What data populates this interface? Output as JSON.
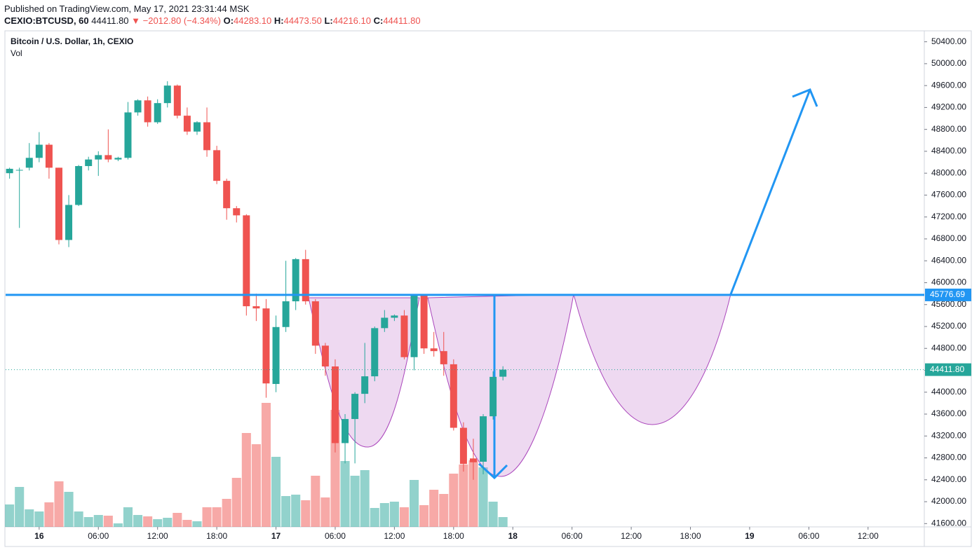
{
  "header": {
    "published": "Published on TradingView.com, May 17, 2021 23:31:44 MSK",
    "symbol": "CEXIO:BTCUSD, 60",
    "price": "44411.80",
    "change": "▼ −2012.80 (−4.34%)",
    "ohlc": [
      {
        "key": "O:",
        "value": "44283.10"
      },
      {
        "key": "H:",
        "value": "44473.50"
      },
      {
        "key": "L:",
        "value": "44216.10"
      },
      {
        "key": "C:",
        "value": "44411.80"
      }
    ]
  },
  "chart_data": {
    "type": "candlestick",
    "title": "Bitcoin / U.S. Dollar, 1h, CEXIO",
    "volume_label": "Vol",
    "x": [
      -3,
      -2,
      -1,
      0,
      1,
      2,
      3,
      4,
      5,
      6,
      7,
      8,
      9,
      10,
      11,
      12,
      13,
      14,
      15,
      16,
      17,
      18,
      19,
      20,
      21,
      22,
      23,
      24,
      25,
      26,
      27,
      28,
      29,
      30,
      31,
      32,
      33,
      34,
      35,
      36,
      37,
      38,
      39,
      40,
      41,
      42,
      43,
      44,
      45,
      46,
      47
    ],
    "open": [
      48000,
      48050,
      48100,
      48280,
      48520,
      48100,
      46780,
      47420,
      48130,
      48250,
      48330,
      48250,
      48280,
      49110,
      49330,
      48930,
      49280,
      49600,
      49050,
      48760,
      48930,
      48420,
      47860,
      47360,
      47230,
      45570,
      45530,
      44150,
      45190,
      45660,
      46430,
      45660,
      44850,
      44470,
      43070,
      43510,
      43970,
      44290,
      45170,
      45360,
      45400,
      44640,
      45780,
      44800,
      44750,
      44510,
      43350,
      42790,
      42730,
      43560,
      44283.1
    ],
    "high": [
      48100,
      48100,
      48550,
      48750,
      48550,
      48100,
      47600,
      48150,
      48300,
      48400,
      48800,
      48300,
      49300,
      49350,
      49400,
      49350,
      49680,
      49620,
      49200,
      48950,
      49200,
      48500,
      47900,
      47400,
      47250,
      45800,
      45700,
      45400,
      46400,
      46450,
      46600,
      45700,
      44900,
      44600,
      43600,
      44000,
      44900,
      45200,
      45500,
      45420,
      45500,
      45780,
      45780,
      45100,
      45100,
      44600,
      43450,
      43150,
      43600,
      44380,
      44473.5
    ],
    "low": [
      47900,
      47000,
      48050,
      48200,
      47900,
      46700,
      46650,
      47400,
      48050,
      47950,
      48200,
      48220,
      48250,
      49050,
      48850,
      48900,
      49200,
      49000,
      48700,
      48700,
      48300,
      47800,
      47150,
      47100,
      45400,
      45300,
      43900,
      44000,
      45100,
      45500,
      45600,
      44700,
      44300,
      42900,
      42700,
      42700,
      43800,
      44200,
      45100,
      45300,
      44600,
      44400,
      44700,
      44650,
      44300,
      43300,
      42550,
      42400,
      42500,
      43500,
      44216.1
    ],
    "close": [
      48080,
      48060,
      48280,
      48520,
      48100,
      46780,
      47420,
      48130,
      48250,
      48330,
      48250,
      48280,
      49110,
      49330,
      48930,
      49280,
      49600,
      49050,
      48760,
      48930,
      48420,
      47860,
      47360,
      47230,
      45570,
      45530,
      44160,
      45190,
      45660,
      46430,
      45660,
      44850,
      44470,
      43070,
      43510,
      43970,
      44290,
      45170,
      45360,
      45400,
      44640,
      45780,
      44800,
      44750,
      44510,
      43350,
      42690,
      42720,
      43560,
      44280,
      44411.8
    ],
    "volume": [
      32,
      57,
      25,
      22,
      35,
      65,
      50,
      22,
      14,
      17,
      16,
      5,
      28,
      17,
      15,
      11,
      13,
      20,
      10,
      8,
      28,
      28,
      40,
      70,
      134,
      118,
      177,
      100,
      44,
      46,
      38,
      73,
      42,
      167,
      94,
      73,
      81,
      27,
      34,
      36,
      28,
      67,
      31,
      53,
      47,
      76,
      89,
      95,
      85,
      36,
      14
    ],
    "up_color": "#26a69a",
    "down_color": "#ef5350",
    "xlim": [
      -3.4,
      89.7
    ],
    "xticks": [
      {
        "value": 0,
        "label": "16"
      },
      {
        "value": 6,
        "label": "06:00"
      },
      {
        "value": 12,
        "label": "12:00"
      },
      {
        "value": 18,
        "label": "18:00"
      },
      {
        "value": 24,
        "label": "17"
      },
      {
        "value": 30,
        "label": "06:00"
      },
      {
        "value": 36,
        "label": "12:00"
      },
      {
        "value": 42,
        "label": "18:00"
      },
      {
        "value": 48,
        "label": "18"
      },
      {
        "value": 54,
        "label": "06:00"
      },
      {
        "value": 60,
        "label": "12:00"
      },
      {
        "value": 66,
        "label": "18:00"
      },
      {
        "value": 72,
        "label": "19"
      },
      {
        "value": 78,
        "label": "06:00"
      },
      {
        "value": 84,
        "label": "12:00"
      }
    ],
    "ylim": [
      41540,
      50600
    ],
    "yticks": [
      {
        "value": 41600,
        "label": "41600.00"
      },
      {
        "value": 42000,
        "label": "42000.00"
      },
      {
        "value": 42400,
        "label": "42400.00"
      },
      {
        "value": 42800,
        "label": "42800.00"
      },
      {
        "value": 43200,
        "label": "43200.00"
      },
      {
        "value": 43600,
        "label": "43600.00"
      },
      {
        "value": 44000,
        "label": "44000.00"
      },
      {
        "value": 44400,
        "label": "44400.00"
      },
      {
        "value": 44800,
        "label": "44800.00"
      },
      {
        "value": 45200,
        "label": "45200.00"
      },
      {
        "value": 45600,
        "label": "45600.00"
      },
      {
        "value": 46000,
        "label": "46000.00"
      },
      {
        "value": 46400,
        "label": "46400.00"
      },
      {
        "value": 46800,
        "label": "46800.00"
      },
      {
        "value": 47200,
        "label": "47200.00"
      },
      {
        "value": 47600,
        "label": "47600.00"
      },
      {
        "value": 48000,
        "label": "48000.00"
      },
      {
        "value": 48400,
        "label": "48400.00"
      },
      {
        "value": 48800,
        "label": "48800.00"
      },
      {
        "value": 49200,
        "label": "49200.00"
      },
      {
        "value": 49600,
        "label": "49600.00"
      },
      {
        "value": 50000,
        "label": "50000.00"
      },
      {
        "value": 50400,
        "label": "50400.00"
      }
    ],
    "level": 45776.69,
    "level_color": "#2196f3",
    "last_price": {
      "value": 44411.8,
      "label": "44411.80"
    }
  }
}
